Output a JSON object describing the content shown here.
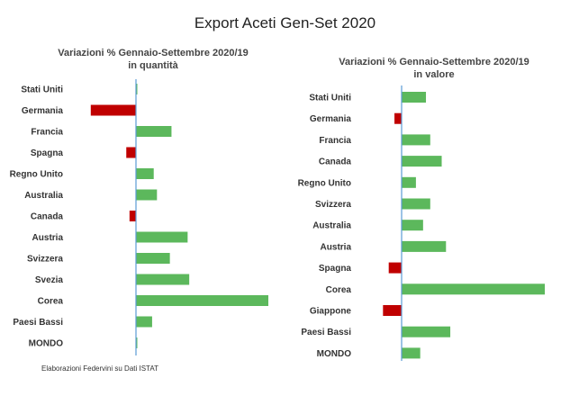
{
  "title": "Export Aceti Gen-Set 2020",
  "source": "Elaborazioni Federvini su Dati ISTAT",
  "colors": {
    "positive": "#5cb85c",
    "negative": "#c00000",
    "axis": "#5b9bd5"
  },
  "chart_data": [
    {
      "type": "bar",
      "orientation": "horizontal",
      "title": "Variazioni % Gennaio-Settembre 2020/19",
      "subtitle": "in quantità",
      "categories": [
        "Stati Uniti",
        "Germania",
        "Francia",
        "Spagna",
        "Regno Unito",
        "Australia",
        "Canada",
        "Austria",
        "Svizzera",
        "Svezia",
        "Corea",
        "Paesi Bassi",
        "MONDO"
      ],
      "values": [
        0.5,
        -28,
        22,
        -6,
        11,
        13,
        -4,
        32,
        21,
        33,
        82,
        10,
        0.5
      ],
      "xlim": [
        -28,
        82
      ]
    },
    {
      "type": "bar",
      "orientation": "horizontal",
      "title": "Variazioni % Gennaio-Settembre 2020/19",
      "subtitle": "in valore",
      "categories": [
        "Stati Uniti",
        "Germania",
        "Francia",
        "Canada",
        "Regno Unito",
        "Svizzera",
        "Australia",
        "Austria",
        "Spagna",
        "Corea",
        "Giappone",
        "Paesi Bassi",
        "MONDO"
      ],
      "values": [
        17,
        -5,
        20,
        28,
        10,
        20,
        15,
        31,
        -9,
        100,
        -13,
        34,
        13
      ],
      "xlim": [
        -13,
        100
      ]
    }
  ]
}
